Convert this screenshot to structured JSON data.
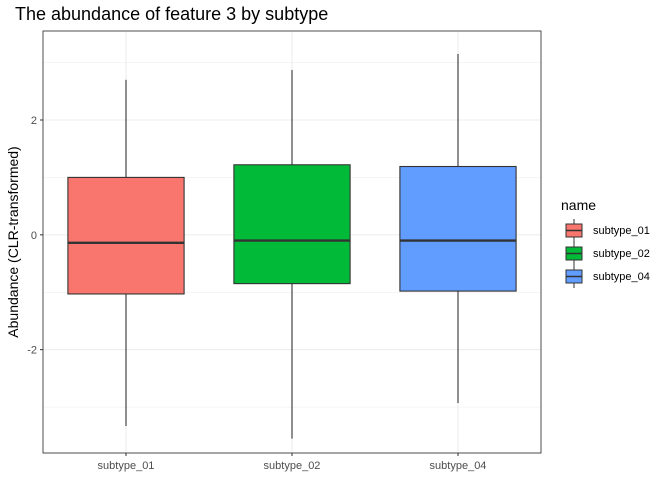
{
  "chart_data": {
    "type": "boxplot",
    "title": "The abundance of feature 3 by subtype",
    "xlabel": "",
    "ylabel": "Abundance (CLR-transformed)",
    "categories": [
      "subtype_01",
      "subtype_02",
      "subtype_04"
    ],
    "ylim": [
      -3.8,
      3.55
    ],
    "yticks": [
      -2,
      0,
      2
    ],
    "ytick_labels": [
      "-2",
      "0",
      "2"
    ],
    "grid": true,
    "legend": {
      "title": "name",
      "position": "right"
    },
    "series": [
      {
        "name": "subtype_01",
        "color": "#F8766D",
        "min": -3.33,
        "q1": -1.03,
        "median": -0.14,
        "q3": 1.0,
        "max": 2.7
      },
      {
        "name": "subtype_02",
        "color": "#00BA38",
        "min": -3.55,
        "q1": -0.85,
        "median": -0.1,
        "q3": 1.22,
        "max": 2.87
      },
      {
        "name": "subtype_04",
        "color": "#619CFF",
        "min": -2.93,
        "q1": -0.98,
        "median": -0.1,
        "q3": 1.19,
        "max": 3.15
      }
    ]
  }
}
